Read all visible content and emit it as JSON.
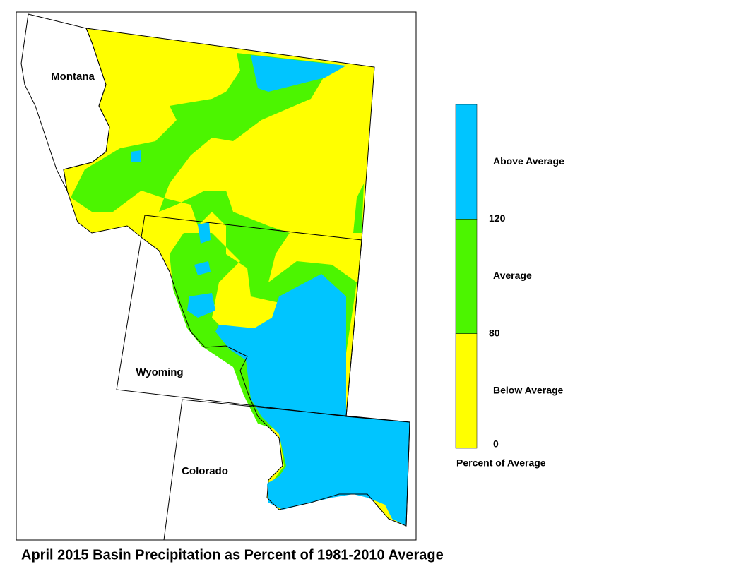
{
  "title": "April 2015 Basin Precipitation as Percent of 1981-2010 Average",
  "states": [
    "Montana",
    "Wyoming",
    "Colorado"
  ],
  "legend": {
    "title": "Percent of Average",
    "classes": [
      {
        "label": "Above Average",
        "color": "#00c5ff"
      },
      {
        "label": "Average",
        "color": "#4cf500"
      },
      {
        "label": "Below Average",
        "color": "#ffff00"
      }
    ],
    "breaks": [
      120,
      80,
      0
    ]
  }
}
